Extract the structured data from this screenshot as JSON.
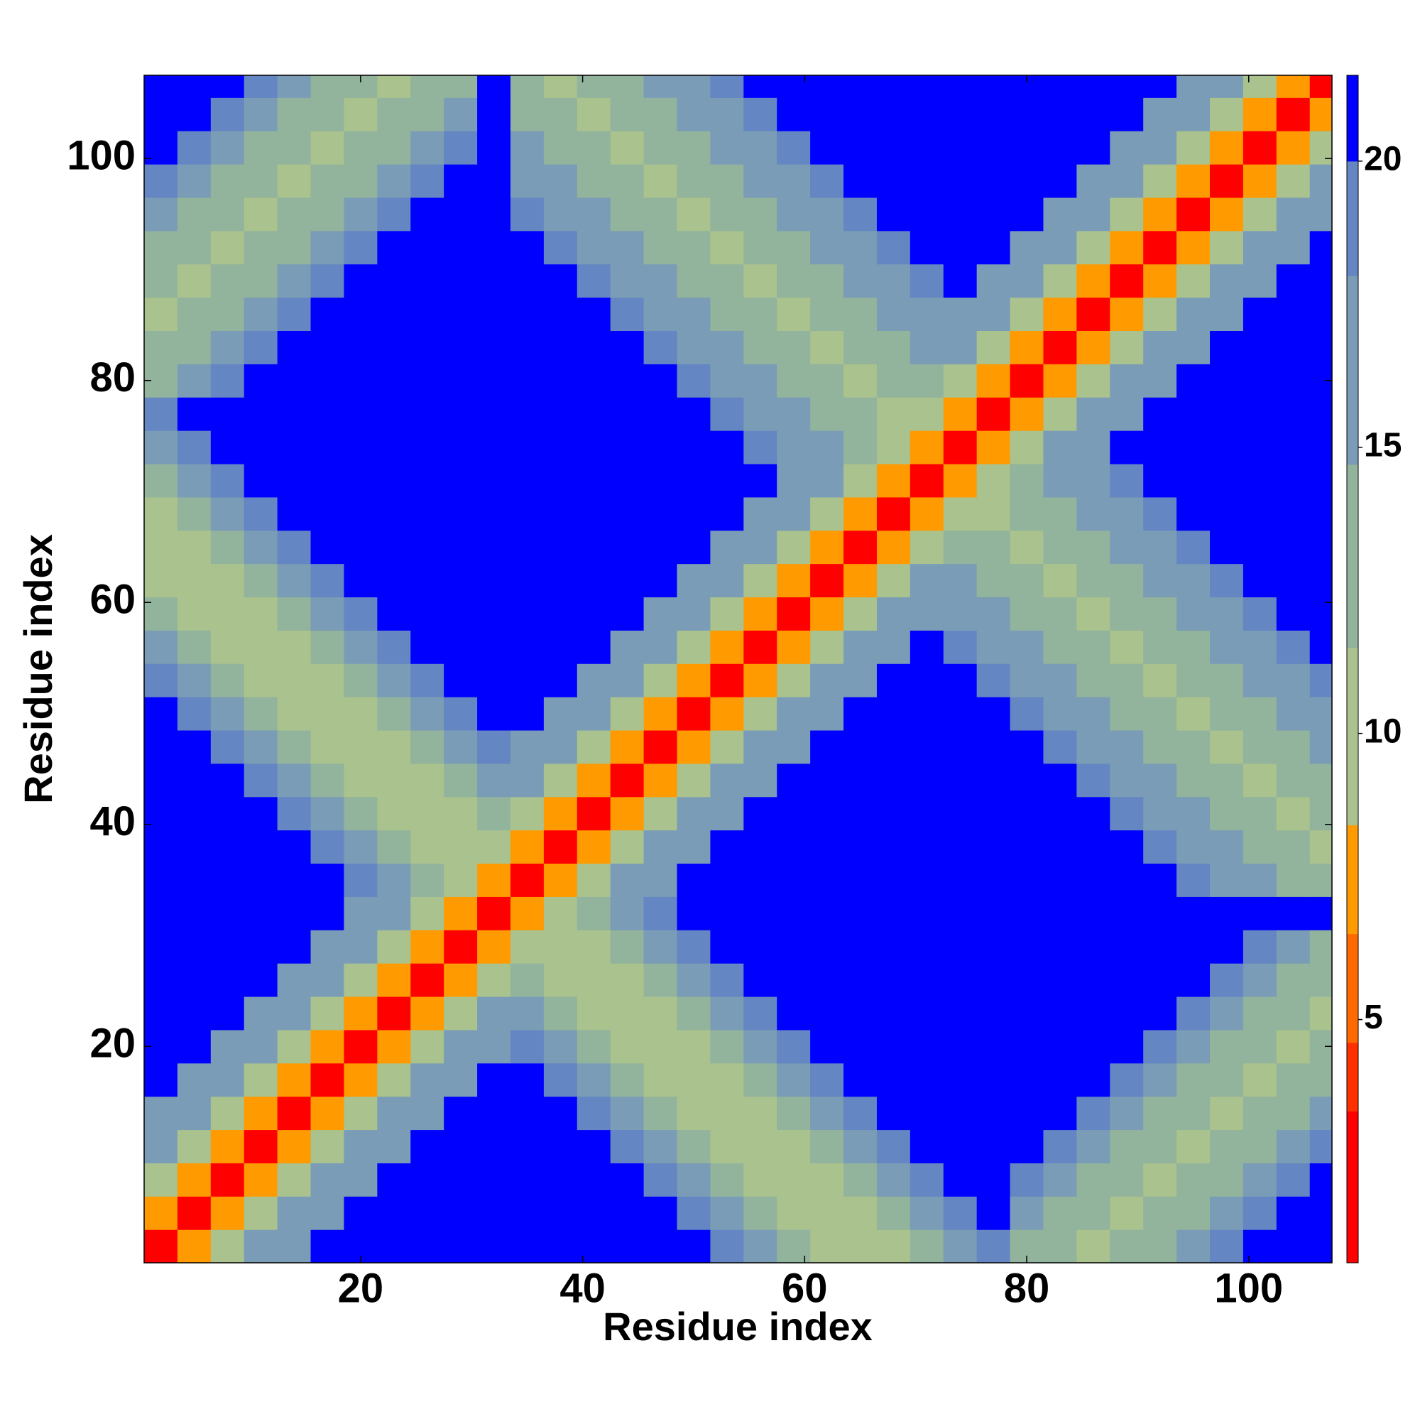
{
  "chart_data": {
    "type": "heatmap",
    "xlabel": "Residue index",
    "ylabel": "Residue index",
    "xlim": [
      0.5,
      107.5
    ],
    "ylim": [
      0.5,
      107.5
    ],
    "xticks": [
      20,
      40,
      60,
      80,
      100
    ],
    "yticks": [
      20,
      40,
      60,
      80,
      100
    ],
    "xbins": [
      0.5,
      3.5,
      6.5,
      9.5,
      12.5,
      15.5,
      18.5,
      21.5,
      24.5,
      27.5,
      30.5,
      33.5,
      36.5,
      39.5,
      42.5,
      45.5,
      48.5,
      51.5,
      54.5,
      57.5,
      60.5,
      63.5,
      66.5,
      69.5,
      72.5,
      75.5,
      78.5,
      81.5,
      84.5,
      87.5,
      90.5,
      93.5,
      96.5,
      99.5,
      102.5,
      105.5,
      107.5
    ],
    "ybins": [
      0.5,
      3.5,
      6.5,
      9.5,
      12.5,
      15.5,
      18.5,
      21.5,
      24.5,
      27.5,
      30.5,
      33.5,
      36.5,
      39.5,
      42.5,
      45.5,
      48.5,
      51.5,
      54.5,
      57.5,
      60.5,
      63.5,
      66.5,
      69.5,
      72.5,
      75.5,
      78.5,
      81.5,
      84.5,
      87.5,
      90.5,
      93.5,
      96.5,
      99.5,
      102.5,
      105.5,
      107.5
    ],
    "colorbar": {
      "lim": [
        0.75,
        21.5
      ],
      "ticks": [
        5,
        10,
        15,
        20
      ],
      "levels": [
        {
          "max": 3.4,
          "color": "#ff0000"
        },
        {
          "max": 4.6,
          "color": "#ff3000"
        },
        {
          "max": 6.5,
          "color": "#ff6a00"
        },
        {
          "max": 8.4,
          "color": "#ff9a00"
        },
        {
          "max": 11.5,
          "color": "#a9c28e"
        },
        {
          "max": 14.7,
          "color": "#92b39c"
        },
        {
          "max": 18,
          "color": "#7a9cb6"
        },
        {
          "max": 20,
          "color": "#6486c2"
        },
        {
          "max": 21.5,
          "color": "#0000ff"
        }
      ]
    },
    "z": [
      [
        2,
        7,
        11,
        15,
        18,
        21,
        21,
        21,
        21,
        21,
        21,
        21,
        21,
        21,
        21,
        21,
        21,
        19,
        16,
        13,
        11,
        10,
        11,
        13,
        16,
        19,
        14,
        12,
        10,
        12,
        14,
        17,
        19,
        21,
        21,
        21
      ],
      [
        7,
        2,
        7,
        11,
        15,
        18,
        21,
        21,
        21,
        21,
        21,
        21,
        21,
        21,
        21,
        21,
        19,
        16,
        13,
        11,
        10,
        11,
        13,
        16,
        19,
        21,
        17,
        14,
        12,
        10,
        12,
        14,
        17,
        19,
        21,
        21
      ],
      [
        11,
        7,
        2,
        7,
        11,
        15,
        18,
        21,
        21,
        21,
        21,
        21,
        21,
        21,
        21,
        19,
        16,
        13,
        11,
        10,
        11,
        13,
        16,
        19,
        21,
        21,
        19,
        17,
        14,
        12,
        10,
        12,
        14,
        17,
        19,
        21
      ],
      [
        15,
        11,
        7,
        2,
        7,
        11,
        15,
        18,
        21,
        21,
        21,
        21,
        21,
        21,
        19,
        16,
        13,
        11,
        10,
        11,
        13,
        16,
        19,
        21,
        21,
        21,
        21,
        19,
        17,
        14,
        12,
        10,
        12,
        14,
        17,
        19
      ],
      [
        18,
        15,
        11,
        7,
        2,
        7,
        11,
        15,
        18,
        21,
        21,
        21,
        21,
        19,
        16,
        13,
        11,
        10,
        11,
        13,
        16,
        19,
        21,
        21,
        21,
        21,
        21,
        21,
        19,
        17,
        14,
        12,
        10,
        12,
        14,
        17
      ],
      [
        21,
        18,
        15,
        11,
        7,
        2,
        7,
        11,
        15,
        18,
        21,
        21,
        19,
        16,
        13,
        11,
        10,
        11,
        13,
        16,
        19,
        21,
        21,
        21,
        21,
        21,
        21,
        21,
        21,
        19,
        17,
        14,
        12,
        10,
        12,
        14
      ],
      [
        21,
        21,
        18,
        15,
        11,
        7,
        2,
        7,
        11,
        15,
        18,
        19,
        16,
        13,
        11,
        10,
        11,
        13,
        16,
        19,
        21,
        21,
        21,
        21,
        21,
        21,
        21,
        21,
        21,
        21,
        19,
        17,
        14,
        12,
        10,
        12
      ],
      [
        21,
        21,
        21,
        18,
        15,
        11,
        7,
        2,
        7,
        11,
        15,
        16,
        13,
        11,
        10,
        11,
        13,
        16,
        19,
        21,
        21,
        21,
        21,
        21,
        21,
        21,
        21,
        21,
        21,
        21,
        21,
        19,
        17,
        14,
        12,
        10
      ],
      [
        21,
        21,
        21,
        21,
        18,
        15,
        11,
        7,
        2,
        7,
        11,
        13,
        11,
        10,
        11,
        13,
        16,
        19,
        21,
        21,
        21,
        21,
        21,
        21,
        21,
        21,
        21,
        21,
        21,
        21,
        21,
        21,
        19,
        17,
        14,
        12
      ],
      [
        21,
        21,
        21,
        21,
        21,
        18,
        15,
        11,
        7,
        2,
        7,
        11,
        10,
        11,
        13,
        16,
        19,
        21,
        21,
        21,
        21,
        21,
        21,
        21,
        21,
        21,
        21,
        21,
        21,
        21,
        21,
        21,
        21,
        19,
        17,
        14
      ],
      [
        21,
        21,
        21,
        21,
        21,
        21,
        18,
        15,
        11,
        7,
        2,
        7,
        11,
        13,
        16,
        19,
        21,
        21,
        21,
        21,
        21,
        21,
        21,
        21,
        21,
        21,
        21,
        21,
        21,
        21,
        21,
        21,
        21,
        21,
        21,
        21
      ],
      [
        21,
        21,
        21,
        21,
        21,
        21,
        19,
        16,
        13,
        11,
        7,
        2,
        7,
        11,
        15,
        18,
        21,
        21,
        21,
        21,
        21,
        21,
        21,
        21,
        21,
        21,
        21,
        21,
        21,
        21,
        21,
        20,
        18,
        16,
        14,
        12
      ],
      [
        21,
        21,
        21,
        21,
        21,
        19,
        16,
        13,
        11,
        10,
        11,
        7,
        2,
        7,
        11,
        15,
        18,
        21,
        21,
        21,
        21,
        21,
        21,
        21,
        21,
        21,
        21,
        21,
        21,
        21,
        20,
        18,
        16,
        14,
        12,
        11
      ],
      [
        21,
        21,
        21,
        21,
        19,
        16,
        13,
        11,
        10,
        11,
        13,
        11,
        7,
        2,
        7,
        11,
        15,
        18,
        21,
        21,
        21,
        21,
        21,
        21,
        21,
        21,
        21,
        21,
        21,
        20,
        18,
        16,
        14,
        12,
        11,
        12
      ],
      [
        21,
        21,
        21,
        19,
        16,
        13,
        11,
        10,
        11,
        13,
        16,
        15,
        11,
        7,
        2,
        7,
        11,
        15,
        18,
        21,
        21,
        21,
        21,
        21,
        21,
        21,
        21,
        21,
        20,
        18,
        16,
        14,
        12,
        11,
        12,
        14
      ],
      [
        21,
        21,
        19,
        16,
        13,
        11,
        10,
        11,
        13,
        16,
        19,
        18,
        15,
        11,
        7,
        2,
        7,
        11,
        15,
        18,
        21,
        21,
        21,
        21,
        21,
        21,
        21,
        20,
        18,
        16,
        14,
        12,
        11,
        12,
        14,
        16
      ],
      [
        21,
        19,
        16,
        13,
        11,
        10,
        11,
        13,
        16,
        19,
        21,
        21,
        18,
        15,
        11,
        7,
        2,
        7,
        11,
        15,
        18,
        21,
        21,
        21,
        21,
        21,
        20,
        18,
        16,
        14,
        12,
        11,
        12,
        14,
        16,
        18
      ],
      [
        19,
        16,
        13,
        11,
        10,
        11,
        13,
        16,
        19,
        21,
        21,
        21,
        21,
        18,
        15,
        11,
        7,
        2,
        7,
        11,
        15,
        18,
        21,
        21,
        21,
        20,
        18,
        16,
        14,
        12,
        11,
        12,
        14,
        16,
        18,
        20
      ],
      [
        16,
        13,
        11,
        10,
        11,
        13,
        16,
        19,
        21,
        21,
        21,
        21,
        21,
        21,
        18,
        15,
        11,
        7,
        2,
        7,
        11,
        15,
        18,
        21,
        20,
        18,
        16,
        14,
        12,
        11,
        12,
        14,
        16,
        18,
        20,
        21
      ],
      [
        13,
        11,
        10,
        11,
        13,
        16,
        19,
        21,
        21,
        21,
        21,
        21,
        21,
        21,
        21,
        18,
        15,
        11,
        7,
        2,
        7,
        11,
        15,
        18,
        18,
        16,
        14,
        12,
        11,
        12,
        14,
        16,
        18,
        20,
        21,
        21
      ],
      [
        11,
        10,
        11,
        13,
        16,
        19,
        21,
        21,
        21,
        21,
        21,
        21,
        21,
        21,
        21,
        21,
        18,
        15,
        11,
        7,
        2,
        7,
        11,
        15,
        16,
        14,
        12,
        11,
        12,
        14,
        16,
        18,
        20,
        21,
        21,
        21
      ],
      [
        10,
        11,
        13,
        16,
        19,
        21,
        21,
        21,
        21,
        21,
        21,
        21,
        21,
        21,
        21,
        21,
        21,
        18,
        15,
        11,
        7,
        2,
        7,
        11,
        14,
        12,
        11,
        12,
        14,
        16,
        18,
        20,
        21,
        21,
        21,
        21
      ],
      [
        11,
        13,
        16,
        19,
        21,
        21,
        21,
        21,
        21,
        21,
        21,
        21,
        21,
        21,
        21,
        21,
        21,
        21,
        18,
        15,
        11,
        7,
        2,
        7,
        11,
        11,
        12,
        14,
        16,
        18,
        20,
        21,
        21,
        21,
        21,
        21
      ],
      [
        13,
        16,
        19,
        21,
        21,
        21,
        21,
        21,
        21,
        21,
        21,
        21,
        21,
        21,
        21,
        21,
        21,
        21,
        21,
        18,
        15,
        11,
        7,
        2,
        7,
        11,
        14,
        16,
        18,
        20,
        21,
        21,
        21,
        21,
        21,
        21
      ],
      [
        16,
        19,
        21,
        21,
        21,
        21,
        21,
        21,
        21,
        21,
        21,
        21,
        21,
        21,
        21,
        21,
        21,
        21,
        20,
        18,
        16,
        14,
        11,
        7,
        2,
        7,
        11,
        15,
        18,
        21,
        21,
        21,
        21,
        21,
        21,
        21
      ],
      [
        19,
        21,
        21,
        21,
        21,
        21,
        21,
        21,
        21,
        21,
        21,
        21,
        21,
        21,
        21,
        21,
        21,
        20,
        18,
        16,
        14,
        12,
        11,
        11,
        7,
        2,
        7,
        11,
        15,
        18,
        21,
        21,
        21,
        21,
        21,
        21
      ],
      [
        14,
        17,
        19,
        21,
        21,
        21,
        21,
        21,
        21,
        21,
        21,
        21,
        21,
        21,
        21,
        21,
        20,
        18,
        16,
        14,
        12,
        11,
        12,
        14,
        11,
        7,
        2,
        7,
        11,
        15,
        18,
        21,
        21,
        21,
        21,
        21
      ],
      [
        12,
        14,
        17,
        19,
        21,
        21,
        21,
        21,
        21,
        21,
        21,
        21,
        21,
        21,
        21,
        20,
        18,
        16,
        14,
        12,
        11,
        12,
        14,
        16,
        15,
        11,
        7,
        2,
        7,
        11,
        15,
        18,
        21,
        21,
        21,
        21
      ],
      [
        10,
        12,
        14,
        17,
        19,
        21,
        21,
        21,
        21,
        21,
        21,
        21,
        21,
        21,
        20,
        18,
        16,
        14,
        12,
        11,
        12,
        14,
        16,
        18,
        18,
        15,
        11,
        7,
        2,
        7,
        11,
        15,
        18,
        21,
        21,
        21
      ],
      [
        12,
        10,
        12,
        14,
        17,
        19,
        21,
        21,
        21,
        21,
        21,
        21,
        21,
        20,
        18,
        16,
        14,
        12,
        11,
        12,
        14,
        16,
        18,
        20,
        21,
        18,
        15,
        11,
        7,
        2,
        7,
        11,
        15,
        18,
        21,
        21
      ],
      [
        14,
        12,
        10,
        12,
        14,
        17,
        19,
        21,
        21,
        21,
        21,
        21,
        20,
        18,
        16,
        14,
        12,
        11,
        12,
        14,
        16,
        18,
        20,
        21,
        21,
        21,
        18,
        15,
        11,
        7,
        2,
        7,
        11,
        15,
        18,
        21
      ],
      [
        17,
        14,
        12,
        10,
        12,
        14,
        17,
        19,
        21,
        21,
        21,
        20,
        18,
        16,
        14,
        12,
        11,
        12,
        14,
        16,
        18,
        20,
        21,
        21,
        21,
        21,
        21,
        18,
        15,
        11,
        7,
        2,
        7,
        11,
        15,
        18
      ],
      [
        19,
        17,
        14,
        12,
        10,
        12,
        14,
        17,
        19,
        21,
        21,
        18,
        16,
        14,
        12,
        11,
        12,
        14,
        16,
        18,
        20,
        21,
        21,
        21,
        21,
        21,
        21,
        21,
        18,
        15,
        11,
        7,
        2,
        7,
        11,
        15
      ],
      [
        21,
        19,
        17,
        14,
        12,
        10,
        12,
        14,
        17,
        19,
        21,
        16,
        14,
        12,
        11,
        12,
        14,
        16,
        18,
        20,
        21,
        21,
        21,
        21,
        21,
        21,
        21,
        21,
        21,
        18,
        15,
        11,
        7,
        2,
        7,
        11
      ],
      [
        21,
        21,
        19,
        17,
        14,
        12,
        10,
        12,
        14,
        17,
        21,
        14,
        12,
        11,
        12,
        14,
        16,
        18,
        20,
        21,
        21,
        21,
        21,
        21,
        21,
        21,
        21,
        21,
        21,
        21,
        18,
        15,
        11,
        7,
        2,
        7
      ],
      [
        21,
        21,
        21,
        19,
        17,
        14,
        12,
        10,
        12,
        14,
        21,
        12,
        11,
        12,
        14,
        16,
        18,
        20,
        21,
        21,
        21,
        21,
        21,
        21,
        21,
        21,
        21,
        21,
        21,
        21,
        21,
        18,
        15,
        11,
        7,
        2
      ]
    ]
  }
}
